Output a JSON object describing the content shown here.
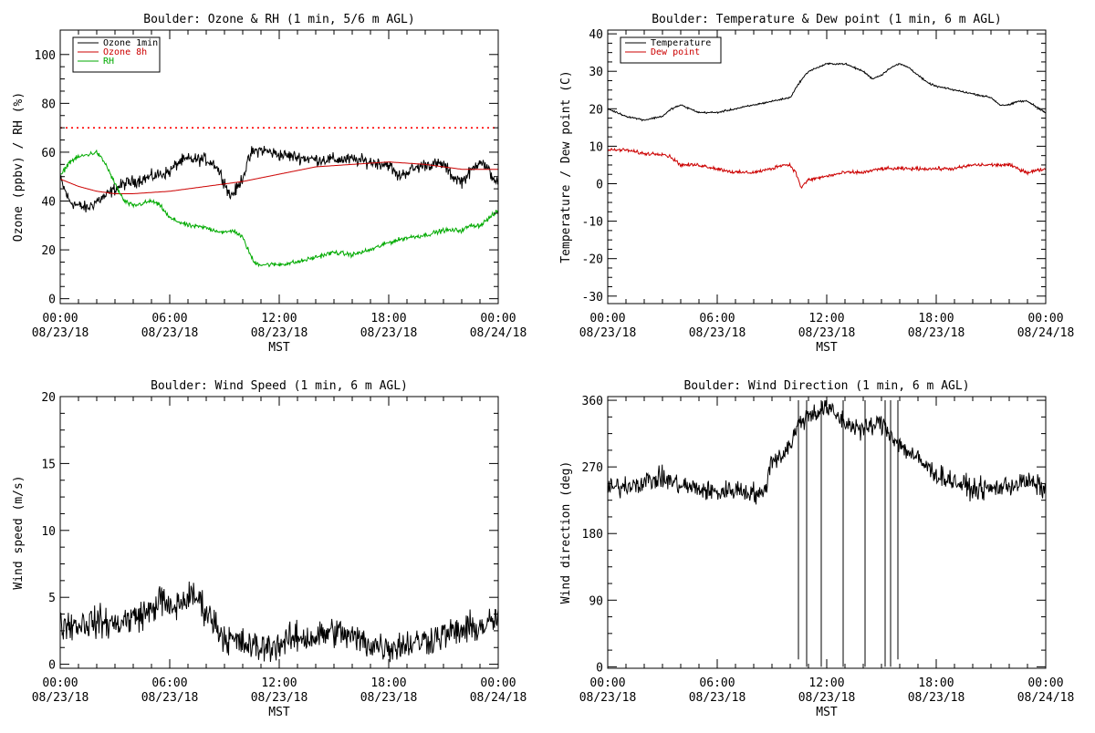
{
  "chart_data": [
    {
      "type": "line",
      "title": "Boulder: Ozone & RH (1 min, 5/6 m AGL)",
      "xlabel": "MST",
      "ylabel": "Ozone (ppbv) / RH (%)",
      "xlim_hours": [
        0,
        24
      ],
      "ylim": [
        -2,
        110
      ],
      "yticks": [
        0,
        20,
        40,
        60,
        80,
        100
      ],
      "xticks": [
        {
          "h": 0,
          "time": "00:00",
          "date": "08/23/18"
        },
        {
          "h": 6,
          "time": "06:00",
          "date": "08/23/18"
        },
        {
          "h": 12,
          "time": "12:00",
          "date": "08/23/18"
        },
        {
          "h": 18,
          "time": "18:00",
          "date": "08/23/18"
        },
        {
          "h": 24,
          "time": "00:00",
          "date": "08/24/18"
        }
      ],
      "legend_position": "top-left",
      "reference_line": {
        "y": 70,
        "color": "#ff0000",
        "style": "dotted"
      },
      "series": [
        {
          "name": "Ozone 1min",
          "color": "#000000",
          "noise": 2.2,
          "x": [
            0,
            0.5,
            1,
            1.5,
            2,
            2.5,
            3,
            3.5,
            4,
            5,
            6,
            6.5,
            7,
            8,
            8.5,
            9,
            9.3,
            9.7,
            10,
            10.5,
            11,
            12,
            13,
            14,
            15,
            16,
            17,
            18,
            18.5,
            19,
            20,
            21,
            21.5,
            22,
            22.5,
            23,
            23.5,
            24
          ],
          "y": [
            49,
            40,
            38,
            37,
            40,
            42,
            45,
            47,
            48,
            50,
            52,
            56,
            57,
            57,
            55,
            48,
            42,
            45,
            50,
            60,
            61,
            59,
            58,
            57,
            57,
            57,
            56,
            55,
            50,
            52,
            55,
            55,
            50,
            48,
            52,
            57,
            52,
            47
          ]
        },
        {
          "name": "Ozone 8h",
          "color": "#cc0000",
          "noise": 0,
          "x": [
            0,
            1,
            2,
            3,
            4,
            6,
            8,
            10,
            12,
            14,
            16,
            18,
            20,
            22,
            24
          ],
          "y": [
            49,
            46,
            44,
            43,
            43,
            44,
            46,
            48,
            51,
            54,
            55,
            56,
            55,
            53,
            53
          ]
        },
        {
          "name": "RH",
          "color": "#00aa00",
          "noise": 0.8,
          "x": [
            0,
            0.5,
            1,
            1.5,
            2,
            2.5,
            3,
            3.5,
            4,
            5,
            5.5,
            6,
            7,
            8,
            9,
            9.5,
            10,
            10.3,
            10.6,
            11,
            12,
            13,
            14,
            15,
            16,
            17,
            18,
            19,
            20,
            21,
            22,
            22.5,
            23,
            23.5,
            24
          ],
          "y": [
            50,
            56,
            58,
            59,
            60,
            55,
            47,
            40,
            38,
            40,
            38,
            33,
            30,
            29,
            27,
            28,
            25,
            20,
            15,
            14,
            14,
            15,
            17,
            19,
            18,
            20,
            23,
            25,
            26,
            28,
            28,
            30,
            30,
            33,
            36
          ]
        }
      ]
    },
    {
      "type": "line",
      "title": "Boulder: Temperature & Dew point (1 min, 6 m AGL)",
      "xlabel": "MST",
      "ylabel": "Temperature / Dew point (C)",
      "xlim_hours": [
        0,
        24
      ],
      "ylim": [
        -32,
        41
      ],
      "yticks": [
        -30,
        -20,
        -10,
        0,
        10,
        20,
        30,
        40
      ],
      "xticks": [
        {
          "h": 0,
          "time": "00:00",
          "date": "08/23/18"
        },
        {
          "h": 6,
          "time": "06:00",
          "date": "08/23/18"
        },
        {
          "h": 12,
          "time": "12:00",
          "date": "08/23/18"
        },
        {
          "h": 18,
          "time": "18:00",
          "date": "08/23/18"
        },
        {
          "h": 24,
          "time": "00:00",
          "date": "08/24/18"
        }
      ],
      "legend_position": "top-left",
      "series": [
        {
          "name": "Temperature",
          "color": "#000000",
          "noise": 0.2,
          "x": [
            0,
            0.5,
            1,
            2,
            3,
            3.5,
            4,
            5,
            6,
            7,
            8,
            9,
            10,
            10.5,
            11,
            12,
            13,
            13.5,
            14,
            14.5,
            15,
            15.5,
            16,
            16.5,
            17,
            17.5,
            18,
            19,
            20,
            21,
            21.5,
            22,
            22.5,
            23,
            24
          ],
          "y": [
            20,
            19,
            18,
            17,
            18,
            20,
            21,
            19,
            19,
            20,
            21,
            22,
            23,
            27,
            30,
            32,
            32,
            31,
            30,
            28,
            29,
            31,
            32,
            31,
            29,
            27,
            26,
            25,
            24,
            23,
            21,
            21,
            22,
            22,
            19
          ]
        },
        {
          "name": "Dew point",
          "color": "#cc0000",
          "noise": 0.4,
          "x": [
            0,
            1,
            2,
            3,
            3.5,
            4,
            5,
            6,
            7,
            8,
            9,
            9.5,
            10,
            10.3,
            10.6,
            11,
            12,
            13,
            14,
            15,
            16,
            17,
            18,
            19,
            20,
            21,
            22,
            23,
            24
          ],
          "y": [
            9,
            9,
            8,
            8,
            7,
            5,
            5,
            4,
            3,
            3,
            4,
            5,
            5,
            3,
            -1,
            1,
            2,
            3,
            3,
            4,
            4,
            4,
            4,
            4,
            5,
            5,
            5,
            3,
            4
          ]
        }
      ]
    },
    {
      "type": "line",
      "title": "Boulder: Wind Speed (1 min, 6 m AGL)",
      "xlabel": "MST",
      "ylabel": "Wind speed (m/s)",
      "xlim_hours": [
        0,
        24
      ],
      "ylim": [
        -0.3,
        20
      ],
      "yticks": [
        0,
        5,
        10,
        15,
        20
      ],
      "xticks": [
        {
          "h": 0,
          "time": "00:00",
          "date": "08/23/18"
        },
        {
          "h": 6,
          "time": "06:00",
          "date": "08/23/18"
        },
        {
          "h": 12,
          "time": "12:00",
          "date": "08/23/18"
        },
        {
          "h": 18,
          "time": "18:00",
          "date": "08/23/18"
        },
        {
          "h": 24,
          "time": "00:00",
          "date": "08/24/18"
        }
      ],
      "series": [
        {
          "color": "#000000",
          "noise": 1.0,
          "clip_min": 0,
          "x": [
            0,
            1,
            2,
            3,
            4,
            5,
            5.5,
            6,
            6.5,
            7,
            7.5,
            8,
            8.5,
            9,
            10,
            11,
            12,
            13,
            14,
            15,
            16,
            17,
            18,
            19,
            20,
            21,
            22,
            23,
            23.5,
            24
          ],
          "y": [
            3,
            3,
            3.2,
            3,
            3.5,
            4,
            5,
            4,
            4.5,
            5,
            5,
            4,
            3,
            2,
            1.5,
            1.2,
            1.5,
            2,
            2,
            2.5,
            2,
            1.5,
            1.3,
            1.5,
            1.8,
            2.2,
            2.5,
            2.8,
            3,
            3.5
          ]
        }
      ]
    },
    {
      "type": "line",
      "title": "Boulder: Wind Direction (1 min, 6 m AGL)",
      "xlabel": "MST",
      "ylabel": "Wind direction (deg)",
      "xlim_hours": [
        0,
        24
      ],
      "ylim": [
        -2,
        365
      ],
      "yticks": [
        0,
        90,
        180,
        270,
        360
      ],
      "xticks": [
        {
          "h": 0,
          "time": "00:00",
          "date": "08/23/18"
        },
        {
          "h": 6,
          "time": "06:00",
          "date": "08/23/18"
        },
        {
          "h": 12,
          "time": "12:00",
          "date": "08/23/18"
        },
        {
          "h": 18,
          "time": "18:00",
          "date": "08/23/18"
        },
        {
          "h": 24,
          "time": "00:00",
          "date": "08/24/18"
        }
      ],
      "series": [
        {
          "color": "#000000",
          "noise": 12,
          "clip_min": 0,
          "clip_max": 360,
          "x": [
            0,
            1,
            2,
            3,
            4,
            5,
            6,
            7,
            8,
            8.5,
            9,
            9.5,
            10,
            10.5,
            11,
            12,
            13,
            14,
            15,
            16,
            17,
            17.5,
            18,
            19,
            20,
            21,
            22,
            23,
            24
          ],
          "y": [
            240,
            245,
            250,
            255,
            245,
            240,
            235,
            240,
            235,
            230,
            280,
            285,
            300,
            330,
            340,
            350,
            330,
            320,
            330,
            300,
            280,
            270,
            260,
            250,
            240,
            240,
            245,
            250,
            240
          ]
        }
      ],
      "drops": [
        {
          "x": 10.45,
          "y": 10
        },
        {
          "x": 10.9,
          "y": 0
        },
        {
          "x": 11.7,
          "y": 0
        },
        {
          "x": 12.9,
          "y": 0
        },
        {
          "x": 14.1,
          "y": 0
        },
        {
          "x": 15.2,
          "y": 0
        },
        {
          "x": 15.5,
          "y": 0
        },
        {
          "x": 15.9,
          "y": 10
        }
      ]
    }
  ]
}
